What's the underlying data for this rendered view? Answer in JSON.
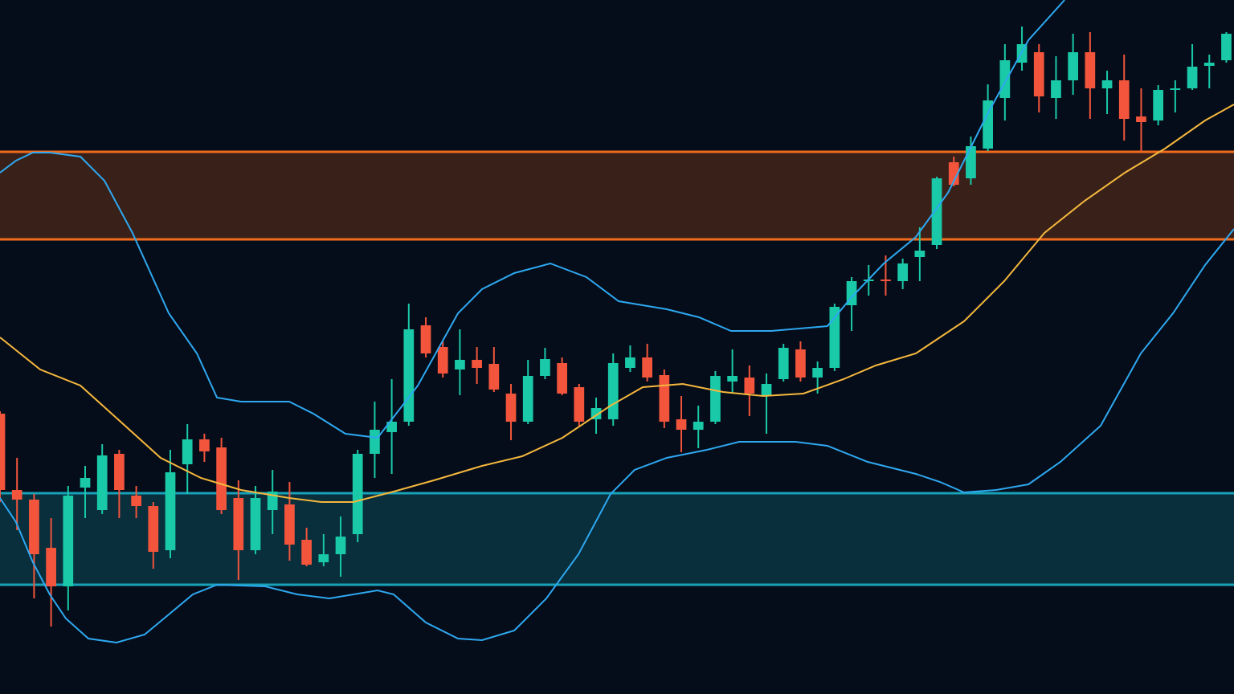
{
  "chart_data": {
    "type": "candlestick",
    "x": [
      0,
      1,
      2,
      3,
      4,
      5,
      6,
      7,
      8,
      9,
      10,
      11,
      12,
      13,
      14,
      15,
      16,
      17,
      18,
      19,
      20,
      21,
      22,
      23,
      24,
      25,
      26,
      27,
      28,
      29,
      30,
      31,
      32,
      33,
      34,
      35,
      36,
      37,
      38,
      39,
      40,
      41,
      42,
      43,
      44,
      45,
      46,
      47,
      48,
      49,
      50,
      51,
      52,
      53,
      54,
      55,
      56,
      57,
      58,
      59,
      60,
      61,
      62,
      63,
      64,
      65,
      66,
      67,
      68,
      69,
      70,
      71,
      72
    ],
    "open": [
      349,
      254,
      242,
      182,
      134,
      257,
      229,
      299,
      247,
      234,
      179,
      286,
      317,
      307,
      244,
      179,
      229,
      236,
      192,
      164,
      174,
      199,
      299,
      326,
      339,
      459,
      432,
      404,
      416,
      411,
      374,
      339,
      396,
      412,
      382,
      342,
      342,
      406,
      419,
      397,
      342,
      329,
      339,
      389,
      394,
      372,
      392,
      429,
      394,
      406,
      484,
      514,
      516,
      514,
      544,
      559,
      662,
      642,
      679,
      742,
      786,
      799,
      742,
      764,
      799,
      754,
      764,
      719,
      714,
      752,
      754,
      782,
      789
    ],
    "high": [
      352,
      294,
      249,
      219,
      259,
      284,
      311,
      304,
      259,
      239,
      304,
      336,
      324,
      319,
      266,
      259,
      279,
      264,
      207,
      199,
      221,
      304,
      364,
      392,
      486,
      469,
      439,
      454,
      432,
      432,
      386,
      416,
      431,
      419,
      386,
      369,
      424,
      434,
      436,
      404,
      371,
      359,
      402,
      429,
      409,
      399,
      436,
      439,
      414,
      486,
      519,
      534,
      546,
      542,
      581,
      644,
      669,
      694,
      759,
      809,
      831,
      809,
      794,
      822,
      824,
      776,
      796,
      754,
      758,
      764,
      809,
      796,
      824
    ],
    "low": [
      239,
      204,
      119,
      84,
      104,
      219,
      224,
      219,
      219,
      156,
      169,
      249,
      289,
      224,
      142,
      174,
      199,
      166,
      159,
      159,
      146,
      189,
      269,
      274,
      334,
      419,
      394,
      372,
      386,
      376,
      316,
      336,
      392,
      372,
      334,
      324,
      334,
      401,
      389,
      331,
      301,
      306,
      336,
      374,
      346,
      324,
      389,
      389,
      374,
      402,
      452,
      496,
      496,
      504,
      514,
      554,
      632,
      634,
      676,
      714,
      776,
      724,
      716,
      746,
      716,
      722,
      689,
      676,
      708,
      724,
      752,
      754,
      786
    ],
    "close": [
      254,
      242,
      174,
      134,
      247,
      269,
      297,
      254,
      234,
      177,
      276,
      317,
      302,
      229,
      179,
      244,
      252,
      186,
      161,
      174,
      196,
      299,
      329,
      339,
      454,
      424,
      399,
      416,
      406,
      379,
      339,
      396,
      417,
      374,
      339,
      356,
      412,
      419,
      394,
      339,
      329,
      339,
      396,
      396,
      374,
      386,
      431,
      394,
      406,
      482,
      514,
      516,
      514,
      536,
      552,
      642,
      634,
      682,
      739,
      789,
      809,
      744,
      764,
      799,
      754,
      764,
      716,
      712,
      752,
      754,
      781,
      786,
      822
    ],
    "up_color": "#19c9a8",
    "down_color": "#f2553c",
    "xlim": [
      0,
      72.45
    ],
    "ylim": [
      0,
      864
    ],
    "zones": [
      {
        "from": 566,
        "to": 675,
        "color": "#f26b1d"
      },
      {
        "from": 136,
        "to": 250,
        "color": "#17a2b8"
      }
    ],
    "lines": [
      {
        "color": "#2ea8f0",
        "x": [
          0,
          0.94,
          1.93,
          2.92,
          4.72,
          6.13,
          7.78,
          9.91,
          11.56,
          12.74,
          14.15,
          16.98,
          18.4,
          20.28,
          22.17,
          24.53,
          26.89,
          28.3,
          30.19,
          32.31,
          34.43,
          36.32,
          39.15,
          41.04,
          42.92,
          45.28,
          48.58,
          50,
          51.89,
          53.77,
          55.66,
          58.02,
          60.38,
          62.5
        ],
        "values": [
          649,
          664,
          674,
          674,
          669,
          639,
          574,
          474,
          424,
          369,
          364,
          364,
          349,
          324,
          319,
          384,
          474,
          504,
          524,
          536,
          519,
          489,
          479,
          469,
          452,
          452,
          458,
          494,
          536,
          569,
          624,
          724,
          814,
          864
        ]
      },
      {
        "color": "#f5b83d",
        "x": [
          0,
          2.36,
          4.72,
          7.08,
          9.43,
          11.79,
          14.15,
          16.98,
          18.87,
          20.75,
          23.11,
          25.47,
          28.3,
          30.66,
          33.02,
          35.85,
          37.74,
          40.09,
          42.45,
          44.81,
          47.17,
          49.53,
          51.42,
          53.77,
          56.6,
          58.96,
          61.32,
          63.68,
          66.04,
          68.4,
          70.75,
          72.45
        ],
        "values": [
          444,
          404,
          384,
          339,
          294,
          269,
          254,
          244,
          239,
          239,
          252,
          266,
          284,
          296,
          319,
          359,
          382,
          386,
          376,
          371,
          374,
          392,
          409,
          424,
          464,
          514,
          574,
          614,
          649,
          679,
          714,
          734
        ]
      },
      {
        "color": "#2ea8f0",
        "x": [
          0,
          0.94,
          1.93,
          2.92,
          3.87,
          5.19,
          6.84,
          8.49,
          9.91,
          11.32,
          12.74,
          15.57,
          17.45,
          19.34,
          22.17,
          23.11,
          25,
          26.89,
          28.3,
          30.19,
          32.08,
          33.96,
          35.85,
          37.26,
          39.15,
          41.51,
          43.4,
          46.7,
          48.58,
          50.94,
          53.77,
          55.19,
          56.6,
          58.49,
          60.38,
          62.26,
          64.62,
          66.98,
          68.87,
          70.75,
          72.45
        ],
        "values": [
          244,
          214,
          164,
          124,
          94,
          69,
          64,
          74,
          99,
          124,
          136,
          134,
          124,
          119,
          129,
          124,
          89,
          69,
          67,
          79,
          119,
          174,
          249,
          279,
          294,
          304,
          314,
          314,
          309,
          289,
          274,
          264,
          251,
          254,
          261,
          289,
          334,
          424,
          474,
          534,
          579
        ]
      }
    ]
  }
}
